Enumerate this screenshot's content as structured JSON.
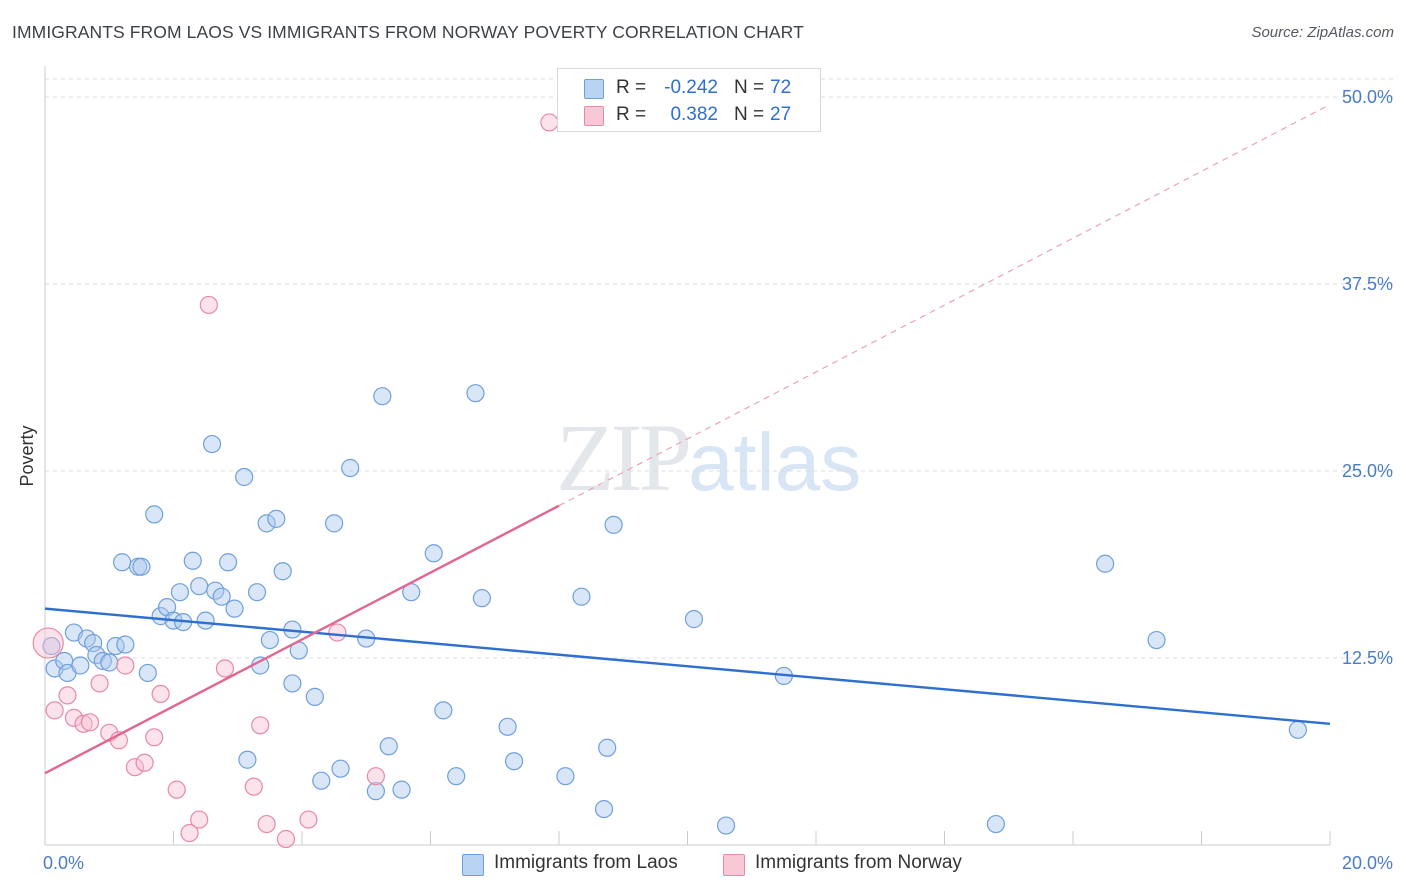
{
  "title": "IMMIGRANTS FROM LAOS VS IMMIGRANTS FROM NORWAY POVERTY CORRELATION CHART",
  "source": "Source: ZipAtlas.com",
  "watermark": {
    "zip": "ZIP",
    "atlas": "atlas"
  },
  "legend": {
    "r_label": "R =",
    "n_label": "N =",
    "rows": [
      {
        "r": "-0.242",
        "n": "72",
        "color": "#b9d3f2",
        "border": "#6fa0dc"
      },
      {
        "r": "0.382",
        "n": "27",
        "color": "#f9c8d6",
        "border": "#e68aa6"
      }
    ]
  },
  "bottom_legend": [
    {
      "label": "Immigrants from Laos",
      "color": "#b9d3f2",
      "border": "#6fa0dc"
    },
    {
      "label": "Immigrants from Norway",
      "color": "#f9c8d6",
      "border": "#e68aa6"
    }
  ],
  "chart_data": {
    "type": "scatter",
    "xlabel": "",
    "ylabel": "Poverty",
    "xlim": [
      0,
      20
    ],
    "ylim": [
      0,
      50
    ],
    "x_tick_labels": [
      "0.0%",
      "20.0%"
    ],
    "y_ticks": [
      12.5,
      25.0,
      37.5,
      50.0
    ],
    "y_tick_labels": [
      "12.5%",
      "25.0%",
      "37.5%",
      "50.0%"
    ],
    "grid": true,
    "series": [
      {
        "name": "Immigrants from Laos",
        "color": "#6fa0dc",
        "fill": "rgba(170,200,240,0.45)",
        "trend_color": "#2e6fd0",
        "trend": {
          "x0": 0,
          "y0": 15.8,
          "x1": 20,
          "y1": 8.1,
          "dash_to": 20
        },
        "points": [
          [
            0.1,
            13.3
          ],
          [
            0.15,
            11.8
          ],
          [
            0.3,
            12.3
          ],
          [
            0.35,
            11.5
          ],
          [
            0.45,
            14.2
          ],
          [
            0.55,
            12.0
          ],
          [
            0.65,
            13.8
          ],
          [
            0.75,
            13.5
          ],
          [
            0.8,
            12.7
          ],
          [
            0.9,
            12.3
          ],
          [
            1.0,
            12.2
          ],
          [
            1.1,
            13.3
          ],
          [
            1.25,
            13.4
          ],
          [
            1.2,
            18.9
          ],
          [
            1.45,
            18.6
          ],
          [
            1.5,
            18.6
          ],
          [
            1.6,
            11.5
          ],
          [
            1.7,
            22.1
          ],
          [
            1.8,
            15.3
          ],
          [
            1.9,
            15.9
          ],
          [
            2.0,
            15.0
          ],
          [
            2.1,
            16.9
          ],
          [
            2.15,
            14.9
          ],
          [
            2.3,
            19.0
          ],
          [
            2.4,
            17.3
          ],
          [
            2.5,
            15.0
          ],
          [
            2.6,
            26.8
          ],
          [
            2.65,
            17.0
          ],
          [
            2.75,
            16.6
          ],
          [
            2.85,
            18.9
          ],
          [
            2.95,
            15.8
          ],
          [
            3.1,
            24.6
          ],
          [
            3.15,
            5.7
          ],
          [
            3.3,
            16.9
          ],
          [
            3.35,
            12.0
          ],
          [
            3.45,
            21.5
          ],
          [
            3.5,
            13.7
          ],
          [
            3.6,
            21.8
          ],
          [
            3.7,
            18.3
          ],
          [
            3.85,
            14.4
          ],
          [
            3.85,
            10.8
          ],
          [
            3.95,
            13.0
          ],
          [
            4.2,
            9.9
          ],
          [
            4.3,
            4.3
          ],
          [
            4.5,
            21.5
          ],
          [
            4.6,
            5.1
          ],
          [
            4.75,
            25.2
          ],
          [
            5.0,
            13.8
          ],
          [
            5.15,
            3.6
          ],
          [
            5.25,
            30.0
          ],
          [
            5.35,
            6.6
          ],
          [
            5.55,
            3.7
          ],
          [
            5.7,
            16.9
          ],
          [
            6.05,
            19.5
          ],
          [
            6.2,
            9.0
          ],
          [
            6.4,
            4.6
          ],
          [
            6.7,
            30.2
          ],
          [
            6.8,
            16.5
          ],
          [
            7.2,
            7.9
          ],
          [
            7.3,
            5.6
          ],
          [
            8.1,
            4.6
          ],
          [
            8.35,
            16.6
          ],
          [
            8.7,
            2.4
          ],
          [
            8.75,
            6.5
          ],
          [
            8.85,
            21.4
          ],
          [
            10.1,
            15.1
          ],
          [
            10.6,
            1.3
          ],
          [
            11.5,
            11.3
          ],
          [
            14.8,
            1.4
          ],
          [
            16.5,
            18.8
          ],
          [
            17.3,
            13.7
          ],
          [
            19.5,
            7.7
          ]
        ]
      },
      {
        "name": "Immigrants from Norway",
        "color": "#e68aa6",
        "fill": "rgba(248,190,210,0.45)",
        "trend_color": "#e06890",
        "trend": {
          "x0": 0,
          "y0": 4.8,
          "x1": 20,
          "y1": 49.5,
          "solid_to": 8.0
        },
        "points": [
          [
            0.15,
            9.0
          ],
          [
            0.35,
            10.0
          ],
          [
            0.45,
            8.5
          ],
          [
            0.6,
            8.1
          ],
          [
            0.7,
            8.2
          ],
          [
            0.85,
            10.8
          ],
          [
            1.0,
            7.5
          ],
          [
            1.15,
            7.0
          ],
          [
            1.25,
            12.0
          ],
          [
            1.4,
            5.2
          ],
          [
            1.55,
            5.5
          ],
          [
            1.7,
            7.2
          ],
          [
            1.8,
            10.1
          ],
          [
            2.05,
            3.7
          ],
          [
            2.25,
            0.8
          ],
          [
            2.4,
            1.7
          ],
          [
            2.55,
            36.1
          ],
          [
            2.8,
            11.8
          ],
          [
            3.25,
            3.9
          ],
          [
            3.35,
            8.0
          ],
          [
            3.45,
            1.4
          ],
          [
            3.75,
            0.4
          ],
          [
            4.1,
            1.7
          ],
          [
            4.55,
            14.2
          ],
          [
            5.15,
            4.6
          ],
          [
            7.85,
            48.3
          ],
          [
            0.05,
            13.5
          ]
        ]
      }
    ]
  }
}
